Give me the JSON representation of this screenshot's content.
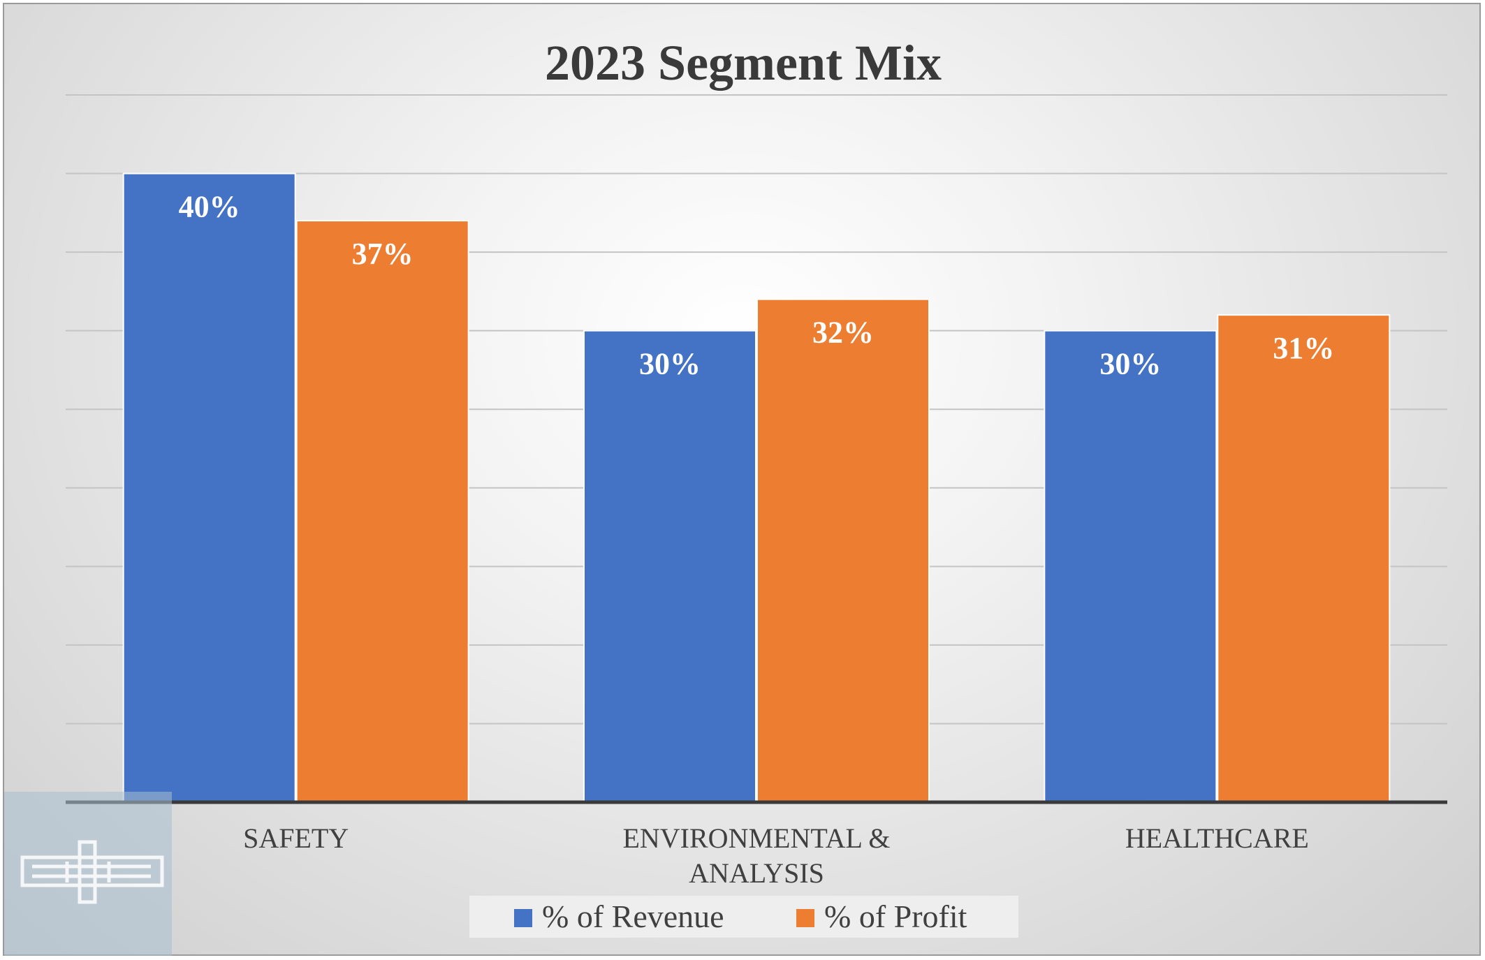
{
  "chart_data": {
    "type": "bar",
    "title": "2023 Segment Mix",
    "categories": [
      "SAFETY",
      "ENVIRONMENTAL & ANALYSIS",
      "HEALTHCARE"
    ],
    "category_lines": [
      [
        "SAFETY"
      ],
      [
        "ENVIRONMENTAL &",
        "ANALYSIS"
      ],
      [
        "HEALTHCARE"
      ]
    ],
    "series": [
      {
        "name": "% of Revenue",
        "values": [
          40,
          30,
          30
        ],
        "labels": [
          "40%",
          "30%",
          "30%"
        ],
        "color": "#4472C4"
      },
      {
        "name": "% of Profit",
        "values": [
          37,
          32,
          31
        ],
        "labels": [
          "37%",
          "32%",
          "31%"
        ],
        "color": "#ED7D31"
      }
    ],
    "ylim": [
      0,
      45
    ],
    "grid": true,
    "legend": "bottom",
    "xlabel": "",
    "ylabel": ""
  }
}
